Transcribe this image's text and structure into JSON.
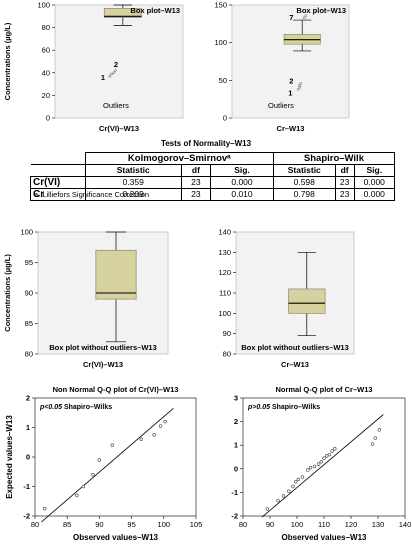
{
  "chart_data": [
    {
      "type": "box",
      "title": "Box plot–W13",
      "xlabel": "Cr(VI)–W13",
      "ylabel": "Concentrations (µg/L)",
      "ylim": [
        0,
        100
      ],
      "yticks": [
        "0",
        "20",
        "40",
        "60",
        "80",
        "100"
      ],
      "box": {
        "min": 82,
        "q1": 89,
        "median": 90,
        "q3": 97,
        "max": 100
      },
      "outliers": [
        {
          "label": "1",
          "value": 37
        },
        {
          "label": "2",
          "value": 40
        }
      ],
      "annotation": "Outliers"
    },
    {
      "type": "box",
      "title": "Box plot–W13",
      "xlabel": "Cr–W13",
      "ylim": [
        0,
        150
      ],
      "yticks": [
        "0",
        "50",
        "100",
        "150"
      ],
      "box": {
        "min": 89,
        "q1": 98,
        "median": 104,
        "q3": 111,
        "max": 130
      },
      "outliers": [
        {
          "label": "1",
          "value": 38
        },
        {
          "label": "2",
          "value": 43
        },
        {
          "label": "7",
          "value": 133
        }
      ],
      "annotation": "Outliers"
    },
    {
      "type": "table",
      "title": "Tests of Normality–W13",
      "groups": [
        "Kolmogorov–Smirnovᵃ",
        "Shapiro–Wilk"
      ],
      "columns": [
        "Statistic",
        "df",
        "Sig.",
        "Statistic",
        "df",
        "Sig."
      ],
      "rows": [
        {
          "label": "Cr(VI)",
          "values": [
            "0.359",
            "23",
            "0.000",
            "0.598",
            "23",
            "0.000"
          ]
        },
        {
          "label": "Cr",
          "values": [
            "0.209",
            "23",
            "0.010",
            "0.798",
            "23",
            "0.000"
          ]
        }
      ],
      "footnote": "a. Lilliefors Significance Correction"
    },
    {
      "type": "box",
      "caption": "Box plot without outliers–W13",
      "xlabel": "Cr(VI)–W13",
      "ylabel": "Concentrations (µg/L)",
      "ylim": [
        80,
        100
      ],
      "yticks": [
        "80",
        "85",
        "90",
        "95",
        "100"
      ],
      "box": {
        "min": 82,
        "q1": 89,
        "median": 90,
        "q3": 97,
        "max": 100
      }
    },
    {
      "type": "box",
      "caption": "Box plot without outliers–W13",
      "xlabel": "Cr–W13",
      "ylim": [
        80,
        140
      ],
      "yticks": [
        "80",
        "90",
        "100",
        "110",
        "120",
        "130",
        "140"
      ],
      "box": {
        "min": 89,
        "q1": 100,
        "median": 105,
        "q3": 112,
        "max": 130
      }
    },
    {
      "type": "scatter",
      "title": "Non Normal Q-Q plot of Cr(VI)–W13",
      "xlabel": "Observed values–W13",
      "ylabel": "Expected values–W13",
      "xlim": [
        80,
        105
      ],
      "ylim": [
        -2,
        2
      ],
      "xticks": [
        "80",
        "85",
        "90",
        "95",
        "100",
        "105"
      ],
      "yticks": [
        "-2",
        "-1",
        "0",
        "1",
        "2"
      ],
      "annotation_bold": "p<0.05",
      "annotation_rest": "Shapiro–Wilks",
      "line": [
        [
          81,
          -2.2
        ],
        [
          101.5,
          1.65
        ]
      ],
      "points": [
        [
          81.5,
          -1.75
        ],
        [
          86.5,
          -1.3
        ],
        [
          87.5,
          -1.0
        ],
        [
          89,
          -0.6
        ],
        [
          90,
          -0.1
        ],
        [
          92,
          0.4
        ],
        [
          96.5,
          0.6
        ],
        [
          98.5,
          0.75
        ],
        [
          99.5,
          1.05
        ],
        [
          100.2,
          1.2
        ]
      ]
    },
    {
      "type": "scatter",
      "title": "Normal Q-Q plot of Cr–W13",
      "xlabel": "Observed values–W13",
      "ylim": [
        -2,
        3
      ],
      "xlim": [
        80,
        140
      ],
      "xticks": [
        "80",
        "90",
        "100",
        "110",
        "120",
        "130",
        "140"
      ],
      "yticks": [
        "-2",
        "-1",
        "0",
        "1",
        "2",
        "3"
      ],
      "annotation_bold": "p>0.05",
      "annotation_rest": "Shapiro–Wilks",
      "line": [
        [
          87,
          -2.05
        ],
        [
          132,
          2.3
        ]
      ],
      "points": [
        [
          89,
          -1.7
        ],
        [
          93,
          -1.35
        ],
        [
          95,
          -1.15
        ],
        [
          97,
          -0.95
        ],
        [
          98.5,
          -0.75
        ],
        [
          99.5,
          -0.55
        ],
        [
          100.5,
          -0.45
        ],
        [
          102,
          -0.35
        ],
        [
          104,
          -0.05
        ],
        [
          105,
          0.05
        ],
        [
          106.5,
          0.1
        ],
        [
          108,
          0.2
        ],
        [
          109,
          0.3
        ],
        [
          110,
          0.45
        ],
        [
          111,
          0.55
        ],
        [
          112,
          0.6
        ],
        [
          113,
          0.75
        ],
        [
          114,
          0.85
        ],
        [
          128,
          1.05
        ],
        [
          129,
          1.3
        ],
        [
          130.5,
          1.65
        ]
      ]
    }
  ]
}
